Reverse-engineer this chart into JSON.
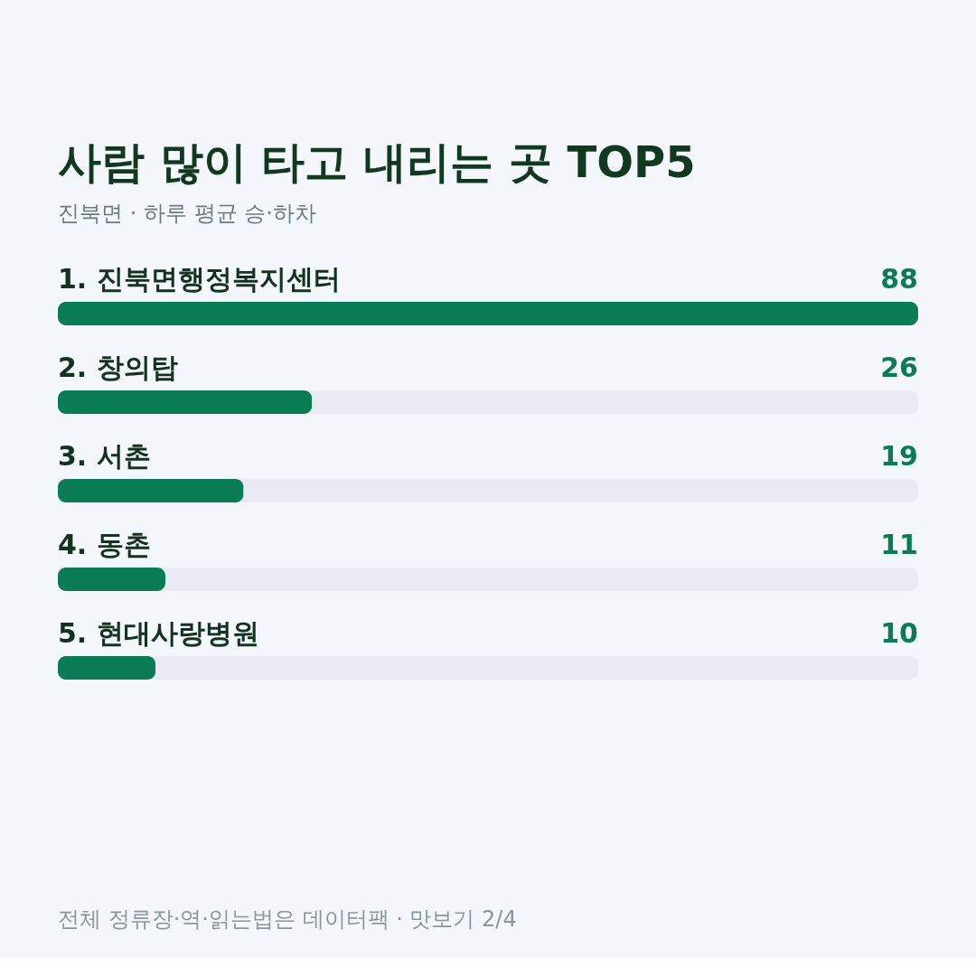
{
  "chart_data": {
    "type": "bar",
    "orientation": "horizontal",
    "title": "사람 많이 타고 내리는 곳 TOP5",
    "subtitle": "진북면 · 하루 평균 승·하차",
    "categories": [
      "1. 진북면행정복지센터",
      "2. 창의탑",
      "3. 서촌",
      "4. 동촌",
      "5. 현대사랑병원"
    ],
    "values": [
      88,
      26,
      19,
      11,
      10
    ],
    "color": "#0a7c55",
    "xlim": [
      0,
      88
    ],
    "data_labels": true,
    "tick_labels": false,
    "annotations": [
      "전체 정류장·역·읽는법은 데이터팩 · 맛보기 2/4"
    ]
  }
}
